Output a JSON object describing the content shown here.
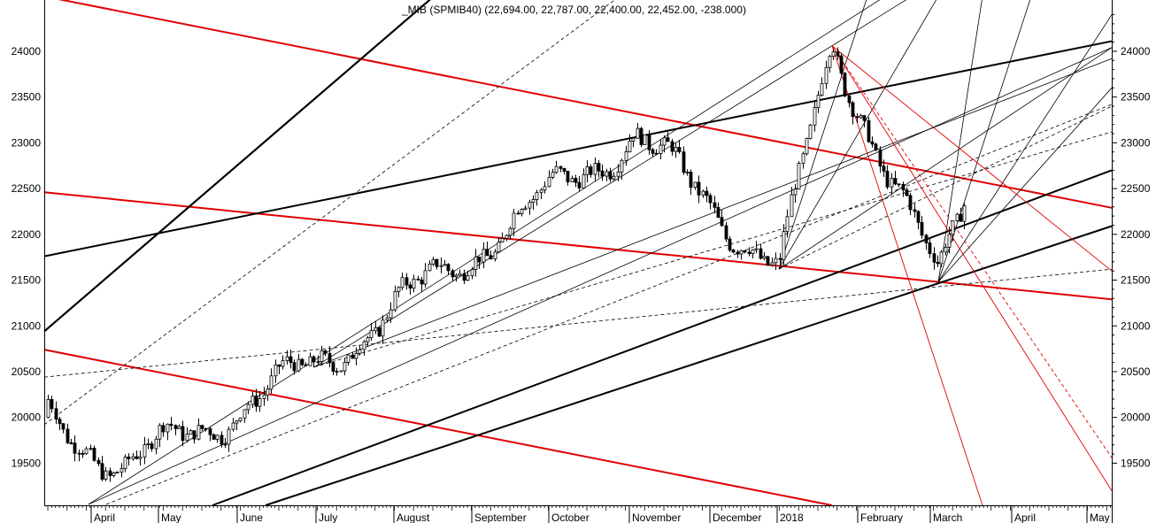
{
  "chart_data": {
    "type": "candlestick",
    "title": "_MIB (SPMIB40) (22,694.00, 22,787.00, 22,400.00, 22,452.00, -238.000)",
    "y_ticks": [
      19500,
      20000,
      20500,
      21000,
      21500,
      22000,
      22500,
      23000,
      23500,
      24000
    ],
    "ylim": [
      19040,
      24560
    ],
    "x_months": [
      "April",
      "May",
      "June",
      "July",
      "August",
      "September",
      "October",
      "November",
      "December",
      "2018",
      "February",
      "March",
      "April",
      "May"
    ],
    "grid": false,
    "colors": {
      "up": "#ffffff",
      "down": "#000000",
      "support_lines": "#000000",
      "resistance_lines": "#e00000"
    },
    "key_points": [
      {
        "label": "start",
        "value": 20000
      },
      {
        "label": "low-apr",
        "value": 19450
      },
      {
        "label": "swing-low-jul",
        "value": 20550
      },
      {
        "label": "high-nov",
        "value": 23100
      },
      {
        "label": "low-dec",
        "value": 21620
      },
      {
        "label": "peak-jan",
        "value": 24060
      },
      {
        "label": "low-mar",
        "value": 21480
      },
      {
        "label": "last",
        "value": 22452
      }
    ]
  }
}
